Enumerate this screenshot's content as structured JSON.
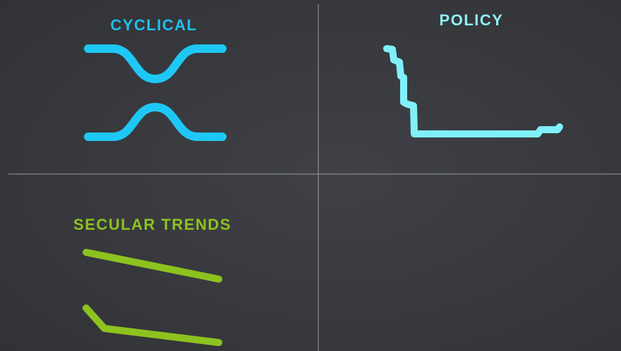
{
  "quadrants": [
    {
      "title": "CYCLICAL"
    },
    {
      "title": "POLICY"
    },
    {
      "title": "SECULAR TRENDS"
    }
  ]
}
